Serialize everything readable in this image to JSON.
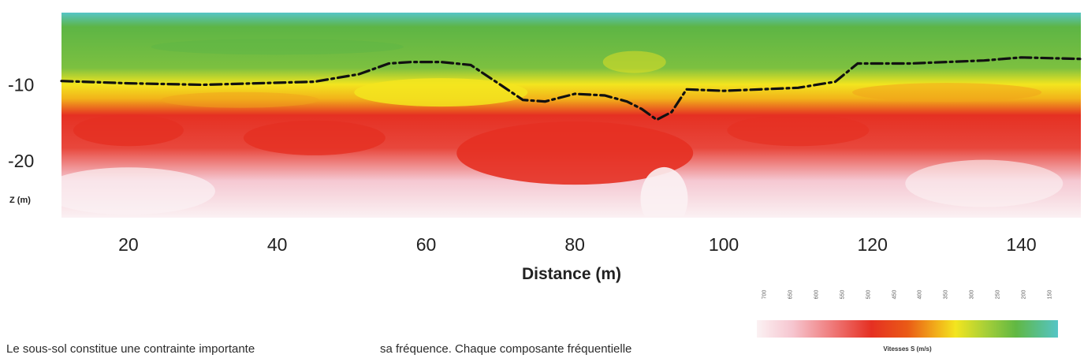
{
  "chart_data": {
    "type": "heatmap",
    "xlabel": "Distance (m)",
    "ylabel": "Z (m)",
    "x_ticks": [
      20,
      40,
      60,
      80,
      100,
      120,
      140
    ],
    "y_ticks": [
      -10,
      -20
    ],
    "xlim": [
      11,
      148
    ],
    "ylim": [
      -27.5,
      -0.5
    ],
    "grid": false,
    "colorbar": {
      "title": "Vitesses S (m/s)",
      "tick_labels": [
        "700",
        "650",
        "600",
        "550",
        "500",
        "450",
        "400",
        "350",
        "300",
        "250",
        "200",
        "150"
      ],
      "colors": [
        "#fbf1f3",
        "#f6c5cf",
        "#ef7a7a",
        "#e53022",
        "#ea5a16",
        "#f2b21a",
        "#f3e51f",
        "#a7cf38",
        "#61b843",
        "#58bf8f",
        "#56c5c6"
      ]
    },
    "bands": [
      {
        "name": "surface",
        "color": "#56c5c6"
      },
      {
        "name": "green",
        "color": "#5db545"
      },
      {
        "name": "yellow",
        "color": "#f3e51f"
      },
      {
        "name": "orange",
        "color": "#f0a41b"
      },
      {
        "name": "red",
        "color": "#e53022"
      },
      {
        "name": "pink",
        "color": "#f5c8d2"
      },
      {
        "name": "light",
        "color": "#fbf1f3"
      }
    ],
    "boundary_line": {
      "style": "dash-dot",
      "x": [
        11,
        20,
        30,
        45,
        51,
        55,
        58,
        62,
        66,
        70,
        73,
        76,
        80,
        84,
        87,
        89,
        91,
        93,
        95,
        100,
        110,
        115,
        118,
        125,
        135,
        140,
        148
      ],
      "y": [
        -9.5,
        -9.8,
        -10.0,
        -9.6,
        -8.6,
        -7.2,
        -7.0,
        -7.0,
        -7.4,
        -10.0,
        -12.0,
        -12.2,
        -11.2,
        -11.4,
        -12.2,
        -13.2,
        -14.6,
        -13.6,
        -10.6,
        -10.8,
        -10.4,
        -9.6,
        -7.2,
        -7.2,
        -6.8,
        -6.4,
        -6.6
      ]
    }
  },
  "text": {
    "excerpt_left": "Le sous-sol constitue une contrainte importante",
    "excerpt_right": "sa fréquence. Chaque composante fréquentielle"
  }
}
